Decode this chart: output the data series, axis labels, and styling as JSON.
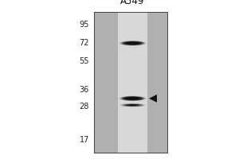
{
  "title": "A549",
  "mw_markers": [
    95,
    72,
    55,
    36,
    28,
    17
  ],
  "band1_mw": 72,
  "band2_mw": 31.5,
  "band3_mw": 28.5,
  "arrow_mw": 31.5,
  "outer_bg": "#ffffff",
  "gel_bg": "#c8c8c8",
  "lane_bg": "#e8e8e8",
  "band_color": "#111111",
  "figure_bg": "#ffffff",
  "marker_fontsize": 7.0,
  "title_fontsize": 8.5
}
